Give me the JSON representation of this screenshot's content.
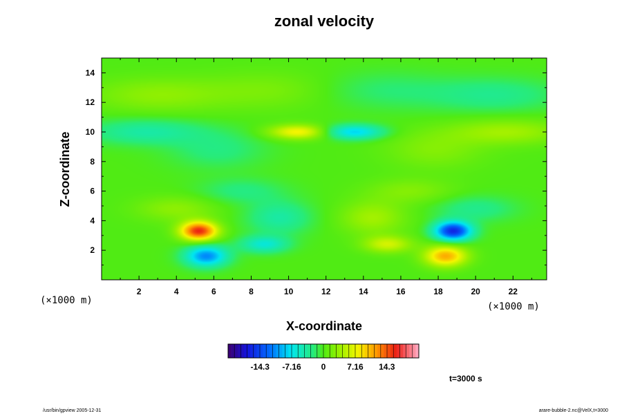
{
  "chart_data": {
    "type": "heatmap",
    "title": "zonal velocity",
    "xlabel": "X-coordinate",
    "ylabel": "Z-coordinate",
    "x_unit_note": "(×1000 m)",
    "y_unit_note": "(×1000 m)",
    "xlim": [
      0,
      23.8
    ],
    "ylim": [
      0,
      15
    ],
    "x_ticks": [
      2,
      4,
      6,
      8,
      10,
      12,
      14,
      16,
      18,
      20,
      22
    ],
    "x_tick_labels": [
      "2",
      "4",
      "6",
      "8",
      "10",
      "12",
      "14",
      "16",
      "18",
      "20",
      "22"
    ],
    "y_ticks": [
      2,
      4,
      6,
      8,
      10,
      12,
      14
    ],
    "y_tick_labels": [
      "2",
      "4",
      "6",
      "8",
      "10",
      "12",
      "14"
    ],
    "value_range": [
      -21.5,
      21.5
    ],
    "colorbar_ticks": [
      -14.3,
      -7.16,
      0,
      7.16,
      14.3
    ],
    "colorbar_tick_labels": [
      "-14.3",
      "-7.16",
      "0",
      "7.16",
      "14.3"
    ],
    "time_label": "t=3000 s",
    "features": [
      {
        "x": 5.2,
        "z": 3.3,
        "value": 16,
        "sx": 0.7,
        "sz": 0.45
      },
      {
        "x": 18.8,
        "z": 3.3,
        "value": -16,
        "sx": 0.7,
        "sz": 0.45
      },
      {
        "x": 5.6,
        "z": 1.6,
        "value": -11,
        "sx": 0.8,
        "sz": 0.5
      },
      {
        "x": 18.4,
        "z": 1.6,
        "value": 11,
        "sx": 0.8,
        "sz": 0.5
      },
      {
        "x": 10.5,
        "z": 10.0,
        "value": 8,
        "sx": 1.1,
        "sz": 0.35
      },
      {
        "x": 13.5,
        "z": 10.0,
        "value": -8,
        "sx": 1.1,
        "sz": 0.35
      },
      {
        "x": 8.7,
        "z": 2.4,
        "value": -6,
        "sx": 0.9,
        "sz": 0.4
      },
      {
        "x": 15.3,
        "z": 2.4,
        "value": 6,
        "sx": 0.9,
        "sz": 0.4
      },
      {
        "x": 2.3,
        "z": 10.0,
        "value": -4,
        "sx": 2.2,
        "sz": 0.6
      },
      {
        "x": 21.7,
        "z": 10.0,
        "value": 4,
        "sx": 2.2,
        "sz": 0.6
      },
      {
        "x": 7.5,
        "z": 6.0,
        "value": -2.5,
        "sx": 1.6,
        "sz": 0.6
      },
      {
        "x": 16.5,
        "z": 6.0,
        "value": 2.5,
        "sx": 1.6,
        "sz": 0.6
      },
      {
        "x": 3.0,
        "z": 12.5,
        "value": 3,
        "sx": 2.5,
        "sz": 0.8
      },
      {
        "x": 21.0,
        "z": 12.5,
        "value": -3,
        "sx": 2.5,
        "sz": 0.8
      },
      {
        "x": 9.0,
        "z": 12.8,
        "value": 2,
        "sx": 2.5,
        "sz": 0.9
      },
      {
        "x": 15.0,
        "z": 12.8,
        "value": -2,
        "sx": 2.5,
        "sz": 0.9
      },
      {
        "x": 6.2,
        "z": 8.8,
        "value": -2.5,
        "sx": 1.8,
        "sz": 0.9
      },
      {
        "x": 17.8,
        "z": 8.8,
        "value": 2.5,
        "sx": 1.8,
        "sz": 0.9
      },
      {
        "x": 4.0,
        "z": 4.8,
        "value": 3,
        "sx": 1.5,
        "sz": 0.6
      },
      {
        "x": 20.0,
        "z": 4.8,
        "value": -3,
        "sx": 1.5,
        "sz": 0.6
      },
      {
        "x": 9.5,
        "z": 4.2,
        "value": -4,
        "sx": 1.2,
        "sz": 0.8
      },
      {
        "x": 14.5,
        "z": 4.2,
        "value": 4,
        "sx": 1.2,
        "sz": 0.8
      }
    ]
  },
  "footer": {
    "left": "/usr/bin/gpview 2005-12-31",
    "right": "arare-bubble-2.nc@VelX,t=3000"
  }
}
